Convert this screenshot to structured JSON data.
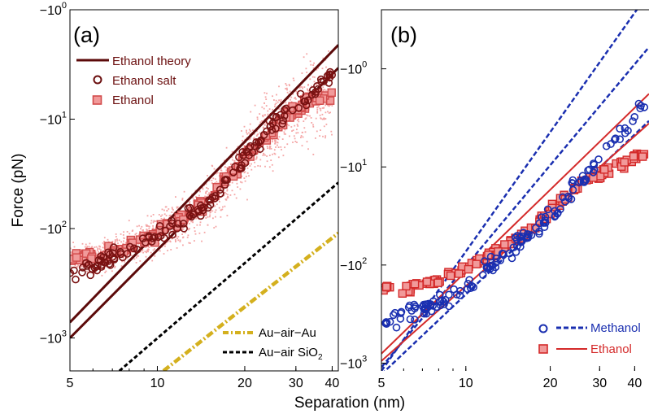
{
  "figure": {
    "ylabel": "Force (pN)",
    "xlabel": "Separation (nm)"
  },
  "colors": {
    "theory": "#5c0a0a",
    "salt": "#7a1212",
    "ethanol_marker": "#d24b4b",
    "ethanol_fill": "#f19a9a",
    "scatter": "#f4a5a5",
    "gold": "#d4b01e",
    "black": "#000000",
    "methanol": "#1a2fb0",
    "ethanol_line": "#d42a2a"
  },
  "chart_data": [
    {
      "type": "scatter",
      "panel_label": "(a)",
      "x_scale": "log",
      "y_scale": "log (magnitude of negative force)",
      "xlim": [
        5,
        42
      ],
      "ylim": [
        -1,
        -2000
      ],
      "x_ticks": [
        "5",
        "10",
        "20",
        "30",
        "40"
      ],
      "y_ticks": [
        "−10",
        "−10",
        "−10",
        "−10"
      ],
      "y_tick_exponents": [
        "0",
        "1",
        "2",
        "3"
      ],
      "legend_top": [
        "Ethanol theory",
        "Ethanol salt",
        "Ethanol"
      ],
      "legend_bottom": [
        "Au−air−Au",
        "Au−air SiO"
      ],
      "legend_bottom_subscript": "2",
      "series": [
        {
          "name": "Ethanol theory",
          "kind": "line",
          "x": [
            5,
            42
          ],
          "y": [
            -720,
            -2.1
          ]
        },
        {
          "name": "Ethanol theory",
          "kind": "line",
          "x": [
            5,
            42
          ],
          "y": [
            -1000,
            -3.4
          ]
        },
        {
          "name": "Ethanol salt",
          "kind": "markers",
          "x": [
            5,
            6,
            7,
            8,
            10,
            12,
            15,
            18,
            20,
            23,
            26,
            30,
            35,
            40
          ],
          "y": [
            -260,
            -230,
            -175,
            -150,
            -115,
            -90,
            -58,
            -35,
            -22,
            -15,
            -10,
            -7.5,
            -5.5,
            -4
          ]
        },
        {
          "name": "Ethanol",
          "kind": "markers",
          "x": [
            5,
            6,
            7,
            8,
            10,
            12,
            15,
            18,
            20,
            23,
            26,
            30,
            35,
            40
          ],
          "y": [
            -190,
            -180,
            -165,
            -145,
            -110,
            -85,
            -55,
            -33,
            -22,
            -15,
            -11,
            -8,
            -6.5,
            -6
          ]
        },
        {
          "name": "Au−air−Au",
          "kind": "line",
          "x": [
            10.5,
            42
          ],
          "y": [
            -2000,
            -110
          ]
        },
        {
          "name": "Au−air SiO2",
          "kind": "line",
          "x": [
            7.4,
            42
          ],
          "y": [
            -2000,
            -38
          ]
        }
      ]
    },
    {
      "type": "scatter",
      "panel_label": "(b)",
      "x_scale": "log",
      "y_scale": "log (magnitude of negative force)",
      "xlim": [
        5,
        45
      ],
      "ylim": [
        -0.25,
        -1200
      ],
      "x_ticks": [
        "5",
        "10",
        "20",
        "30",
        "40"
      ],
      "y_ticks": [
        "−10",
        "−10",
        "−10",
        "−10"
      ],
      "y_tick_exponents": [
        "0",
        "1",
        "2",
        "3"
      ],
      "legend": [
        "Methanol",
        "Ethanol"
      ],
      "series": [
        {
          "name": "Methanol",
          "kind": "markers",
          "x": [
            5,
            6,
            7,
            8,
            10,
            12,
            15,
            18,
            20,
            23,
            26,
            30,
            35,
            40,
            44
          ],
          "y": [
            -420,
            -300,
            -280,
            -260,
            -175,
            -110,
            -65,
            -42,
            -32,
            -20,
            -13,
            -8,
            -5,
            -3,
            -2
          ]
        },
        {
          "name": "Ethanol",
          "kind": "markers",
          "x": [
            5,
            6,
            7,
            8,
            10,
            12,
            15,
            18,
            20,
            23,
            26,
            30,
            35,
            40,
            44
          ],
          "y": [
            -180,
            -170,
            -160,
            -145,
            -110,
            -80,
            -55,
            -38,
            -28,
            -19,
            -14,
            -12,
            -10,
            -8,
            -7
          ]
        },
        {
          "name": "Methanol",
          "kind": "dashed",
          "x": [
            5,
            42
          ],
          "y": [
            -1200,
            -0.22
          ]
        },
        {
          "name": "Methanol",
          "kind": "dashed",
          "x": [
            5,
            45
          ],
          "y": [
            -1100,
            -0.6
          ]
        },
        {
          "name": "Methanol",
          "kind": "dashed",
          "x": [
            5,
            45
          ],
          "y": [
            -1300,
            -3.4
          ]
        },
        {
          "name": "Ethanol",
          "kind": "line",
          "x": [
            5,
            45
          ],
          "y": [
            -800,
            -1.8
          ]
        },
        {
          "name": "Ethanol",
          "kind": "line",
          "x": [
            5,
            45
          ],
          "y": [
            -950,
            -3.6
          ]
        }
      ]
    }
  ]
}
